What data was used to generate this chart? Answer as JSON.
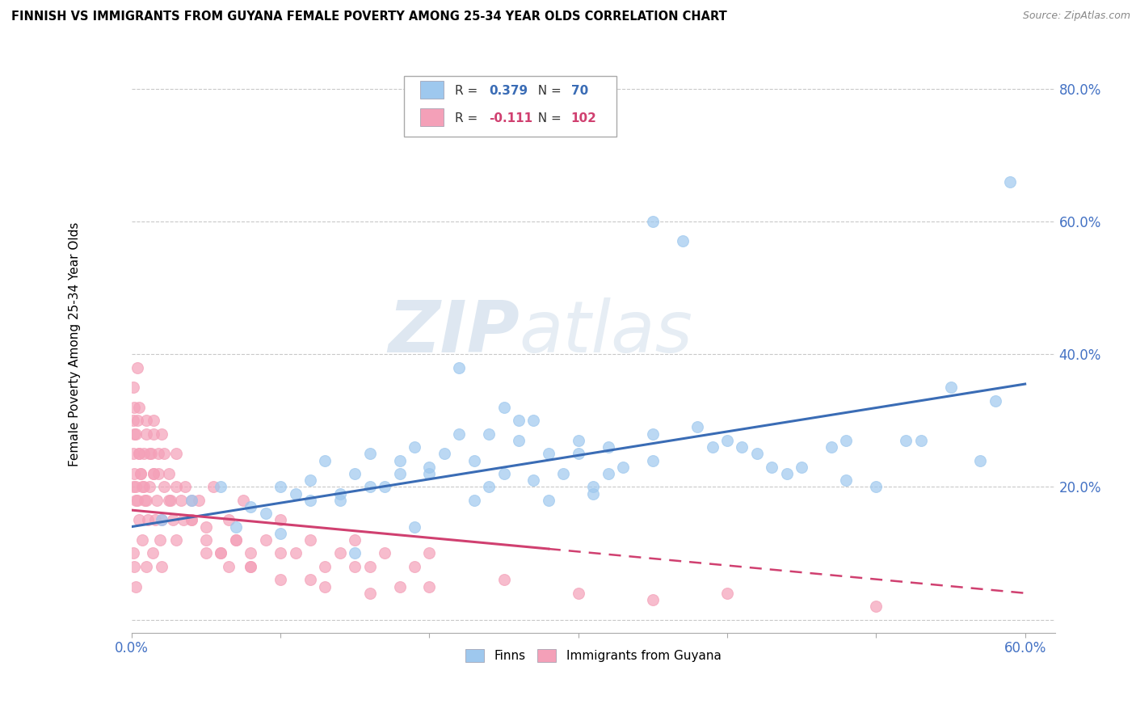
{
  "title": "FINNISH VS IMMIGRANTS FROM GUYANA FEMALE POVERTY AMONG 25-34 YEAR OLDS CORRELATION CHART",
  "source": "Source: ZipAtlas.com",
  "ylabel": "Female Poverty Among 25-34 Year Olds",
  "xlim": [
    0.0,
    0.62
  ],
  "ylim": [
    -0.02,
    0.85
  ],
  "xticks": [
    0.0,
    0.1,
    0.2,
    0.3,
    0.4,
    0.5,
    0.6
  ],
  "xticklabels": [
    "0.0%",
    "",
    "",
    "",
    "",
    "",
    "60.0%"
  ],
  "yticks": [
    0.0,
    0.2,
    0.4,
    0.6,
    0.8
  ],
  "yticklabels": [
    "",
    "20.0%",
    "40.0%",
    "60.0%",
    "80.0%"
  ],
  "finns_color": "#9EC8EE",
  "guyana_color": "#F4A0B8",
  "finns_R": 0.379,
  "finns_N": 70,
  "guyana_R": -0.111,
  "guyana_N": 102,
  "trend_finns_color": "#3A6CB5",
  "trend_guyana_color": "#D04070",
  "watermark_zip": "ZIP",
  "watermark_atlas": "atlas",
  "legend_finns": "Finns",
  "legend_guyana": "Immigrants from Guyana",
  "finns_x": [
    0.02,
    0.04,
    0.06,
    0.07,
    0.08,
    0.09,
    0.1,
    0.11,
    0.12,
    0.13,
    0.14,
    0.15,
    0.16,
    0.17,
    0.18,
    0.19,
    0.2,
    0.21,
    0.22,
    0.23,
    0.24,
    0.25,
    0.26,
    0.27,
    0.28,
    0.29,
    0.3,
    0.31,
    0.32,
    0.33,
    0.35,
    0.35,
    0.37,
    0.39,
    0.4,
    0.42,
    0.44,
    0.45,
    0.47,
    0.48,
    0.5,
    0.52,
    0.55,
    0.57,
    0.59,
    0.22,
    0.18,
    0.14,
    0.24,
    0.28,
    0.32,
    0.26,
    0.2,
    0.16,
    0.12,
    0.1,
    0.15,
    0.19,
    0.23,
    0.27,
    0.31,
    0.38,
    0.43,
    0.48,
    0.53,
    0.58,
    0.3,
    0.25,
    0.35,
    0.41
  ],
  "finns_y": [
    0.15,
    0.18,
    0.2,
    0.14,
    0.17,
    0.16,
    0.2,
    0.19,
    0.21,
    0.24,
    0.19,
    0.22,
    0.25,
    0.2,
    0.24,
    0.26,
    0.22,
    0.25,
    0.28,
    0.24,
    0.28,
    0.32,
    0.27,
    0.3,
    0.25,
    0.22,
    0.27,
    0.2,
    0.26,
    0.23,
    0.6,
    0.24,
    0.57,
    0.26,
    0.27,
    0.25,
    0.22,
    0.23,
    0.26,
    0.27,
    0.2,
    0.27,
    0.35,
    0.24,
    0.66,
    0.38,
    0.22,
    0.18,
    0.2,
    0.18,
    0.22,
    0.3,
    0.23,
    0.2,
    0.18,
    0.13,
    0.1,
    0.14,
    0.18,
    0.21,
    0.19,
    0.29,
    0.23,
    0.21,
    0.27,
    0.33,
    0.25,
    0.22,
    0.28,
    0.26
  ],
  "guyana_x": [
    0.001,
    0.001,
    0.002,
    0.002,
    0.003,
    0.003,
    0.004,
    0.004,
    0.005,
    0.005,
    0.006,
    0.007,
    0.008,
    0.009,
    0.01,
    0.01,
    0.011,
    0.012,
    0.013,
    0.014,
    0.015,
    0.015,
    0.016,
    0.017,
    0.018,
    0.019,
    0.02,
    0.02,
    0.022,
    0.025,
    0.028,
    0.03,
    0.033,
    0.036,
    0.04,
    0.045,
    0.05,
    0.055,
    0.06,
    0.065,
    0.07,
    0.075,
    0.08,
    0.09,
    0.1,
    0.11,
    0.12,
    0.13,
    0.14,
    0.15,
    0.16,
    0.17,
    0.18,
    0.19,
    0.2,
    0.001,
    0.002,
    0.003,
    0.004,
    0.005,
    0.006,
    0.008,
    0.01,
    0.012,
    0.015,
    0.018,
    0.022,
    0.026,
    0.03,
    0.035,
    0.04,
    0.05,
    0.06,
    0.07,
    0.08,
    0.1,
    0.12,
    0.15,
    0.001,
    0.001,
    0.002,
    0.003,
    0.005,
    0.007,
    0.01,
    0.015,
    0.02,
    0.025,
    0.03,
    0.04,
    0.05,
    0.065,
    0.08,
    0.1,
    0.13,
    0.16,
    0.2,
    0.25,
    0.3,
    0.35,
    0.4,
    0.5
  ],
  "guyana_y": [
    0.25,
    0.1,
    0.28,
    0.08,
    0.2,
    0.05,
    0.18,
    0.3,
    0.15,
    0.32,
    0.22,
    0.12,
    0.25,
    0.18,
    0.28,
    0.08,
    0.15,
    0.2,
    0.25,
    0.1,
    0.22,
    0.3,
    0.15,
    0.18,
    0.25,
    0.12,
    0.28,
    0.08,
    0.2,
    0.22,
    0.15,
    0.25,
    0.18,
    0.2,
    0.15,
    0.18,
    0.12,
    0.2,
    0.1,
    0.15,
    0.12,
    0.18,
    0.1,
    0.12,
    0.15,
    0.1,
    0.12,
    0.08,
    0.1,
    0.12,
    0.08,
    0.1,
    0.05,
    0.08,
    0.1,
    0.35,
    0.32,
    0.28,
    0.38,
    0.25,
    0.22,
    0.2,
    0.3,
    0.25,
    0.28,
    0.22,
    0.25,
    0.18,
    0.2,
    0.15,
    0.18,
    0.14,
    0.1,
    0.12,
    0.08,
    0.1,
    0.06,
    0.08,
    0.3,
    0.2,
    0.22,
    0.18,
    0.25,
    0.2,
    0.18,
    0.22,
    0.15,
    0.18,
    0.12,
    0.15,
    0.1,
    0.08,
    0.08,
    0.06,
    0.05,
    0.04,
    0.05,
    0.06,
    0.04,
    0.03,
    0.04,
    0.02
  ]
}
